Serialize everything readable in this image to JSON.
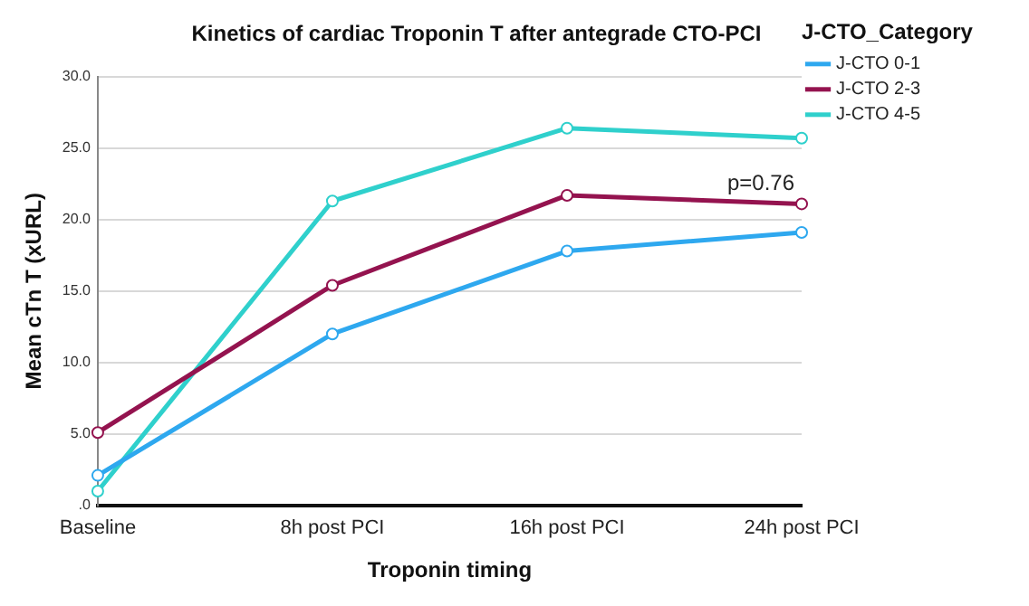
{
  "chart_data": {
    "type": "line",
    "title": "Kinetics of cardiac Troponin T after antegrade CTO-PCI",
    "xlabel": "Troponin timing",
    "ylabel": "Mean cTn T (xURL)",
    "legend_title": "J-CTO_Category",
    "categories": [
      "Baseline",
      "8h post PCI",
      "16h post PCI",
      "24h post PCI"
    ],
    "series": [
      {
        "name": "J-CTO 0-1",
        "color": "#2ea8ef",
        "values": [
          2.1,
          12.0,
          17.8,
          19.1
        ]
      },
      {
        "name": "J-CTO 2-3",
        "color": "#94134f",
        "values": [
          5.1,
          15.4,
          21.7,
          21.1
        ]
      },
      {
        "name": "J-CTO 4-5",
        "color": "#2fd0cc",
        "values": [
          1.0,
          21.3,
          26.4,
          25.7
        ]
      }
    ],
    "ylim": [
      0,
      30
    ],
    "yticks": [
      {
        "value": 0,
        "label": ".0"
      },
      {
        "value": 5,
        "label": "5.0"
      },
      {
        "value": 10,
        "label": "10.0"
      },
      {
        "value": 15,
        "label": "15.0"
      },
      {
        "value": 20,
        "label": "20.0"
      },
      {
        "value": 25,
        "label": "25.0"
      },
      {
        "value": 30,
        "label": "30.0"
      }
    ],
    "grid": "y",
    "legend": "right",
    "marker": "circle",
    "line_style": "solid",
    "annotations": [
      "p=0.76"
    ]
  }
}
